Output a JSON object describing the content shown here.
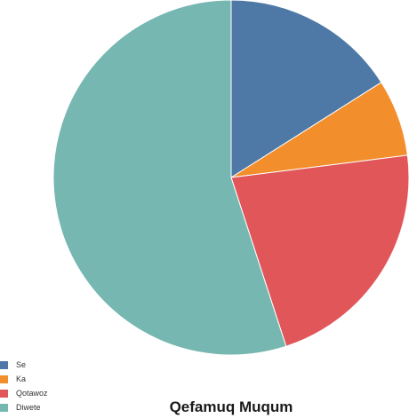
{
  "chart_data": {
    "type": "pie",
    "title": "Qefamuq Muqum",
    "start_angle_deg": 0,
    "direction": "clockwise",
    "legend_position": "bottom-left",
    "slices": [
      {
        "label": "Se",
        "value": 16.0,
        "color": "#4e79a7"
      },
      {
        "label": "Ka",
        "value": 7.0,
        "color": "#f28e2b"
      },
      {
        "label": "Qotawoz",
        "value": 22.0,
        "color": "#e15759"
      },
      {
        "label": "Diwete",
        "value": 55.0,
        "color": "#76b7b2"
      }
    ]
  }
}
